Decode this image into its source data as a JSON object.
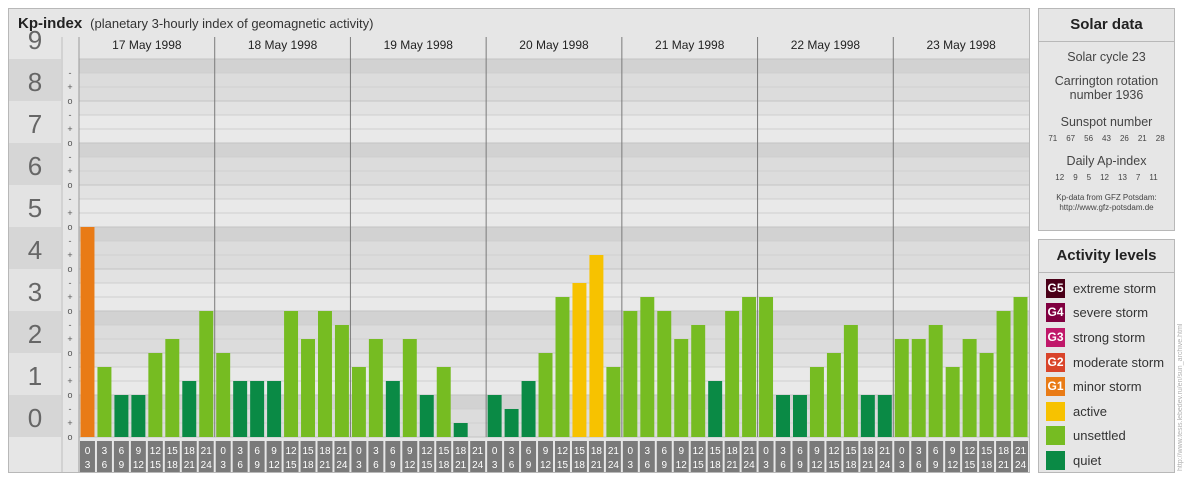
{
  "header": {
    "title": "Kp-index",
    "subtitle": "(planetary 3-hourly index of geomagnetic activity)"
  },
  "chart_data": {
    "type": "bar",
    "ylim": [
      0,
      9
    ],
    "y_ticks": [
      "0",
      "1",
      "2",
      "3",
      "4",
      "5",
      "6",
      "7",
      "8",
      "9"
    ],
    "minor_ticks": [
      "o",
      "+",
      "-"
    ],
    "days": [
      "17 May 1998",
      "18 May 1998",
      "19 May 1998",
      "20 May 1998",
      "21 May 1998",
      "22 May 1998",
      "23 May 1998"
    ],
    "hour_starts": [
      "0",
      "3",
      "6",
      "9",
      "12",
      "15",
      "18",
      "21"
    ],
    "hour_ends": [
      "3",
      "6",
      "9",
      "12",
      "15",
      "18",
      "21",
      "24"
    ],
    "values": [
      [
        5.0,
        1.667,
        1.0,
        1.0,
        2.0,
        2.333,
        1.333,
        3.0
      ],
      [
        2.0,
        1.333,
        1.333,
        1.333,
        3.0,
        2.333,
        3.0,
        2.667
      ],
      [
        1.667,
        2.333,
        1.333,
        2.333,
        1.0,
        1.667,
        0.333,
        0.0
      ],
      [
        1.0,
        0.667,
        1.333,
        2.0,
        3.333,
        3.667,
        4.333,
        1.667
      ],
      [
        3.0,
        3.333,
        3.0,
        2.333,
        2.667,
        1.333,
        3.0,
        3.333
      ],
      [
        3.333,
        1.0,
        1.0,
        1.667,
        2.0,
        2.667,
        1.0,
        1.0
      ],
      [
        2.333,
        2.333,
        2.667,
        1.667,
        2.333,
        2.0,
        3.0,
        3.333
      ]
    ],
    "colors": {
      "quiet": "#0a8a45",
      "unsettled": "#76bc22",
      "active": "#f7c200",
      "minor_storm": "#e97b16"
    }
  },
  "solar": {
    "title": "Solar data",
    "cycle": "Solar cycle 23",
    "carrington_line1": "Carrington rotation",
    "carrington_line2": "number 1936",
    "sunspot_label": "Sunspot number",
    "sunspot_values": [
      "71",
      "67",
      "56",
      "43",
      "26",
      "21",
      "28"
    ],
    "ap_label": "Daily Ap-index",
    "ap_values": [
      "12",
      "9",
      "5",
      "12",
      "13",
      "7",
      "11"
    ],
    "credit_line1": "Kp-data from GFZ Potsdam:",
    "credit_line2": "http://www.gfz-potsdam.de"
  },
  "activity": {
    "title": "Activity levels",
    "levels": [
      {
        "code": "G5",
        "label": "extreme storm",
        "color": "#4a0018"
      },
      {
        "code": "G4",
        "label": "severe storm",
        "color": "#800040"
      },
      {
        "code": "G3",
        "label": "strong storm",
        "color": "#c0186a"
      },
      {
        "code": "G2",
        "label": "moderate storm",
        "color": "#d9442a"
      },
      {
        "code": "G1",
        "label": "minor storm",
        "color": "#e97b16"
      },
      {
        "code": "",
        "label": "active",
        "color": "#f7c200"
      },
      {
        "code": "",
        "label": "unsettled",
        "color": "#76bc22"
      },
      {
        "code": "",
        "label": "quiet",
        "color": "#0a8a45"
      }
    ]
  },
  "side_credit": "http://www.tesis.lebedev.ru/en/sun_archive.html"
}
